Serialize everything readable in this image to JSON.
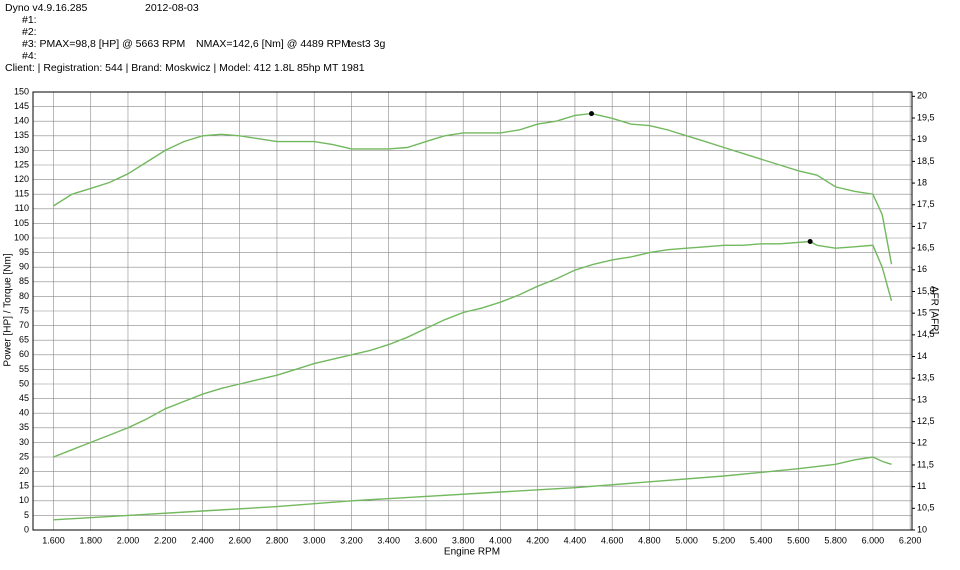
{
  "header": {
    "app": "Dyno v4.9.16.285",
    "date": "2012-08-03",
    "run1": "#1:",
    "run2": "#2:",
    "run3": "#3: PMAX=98,8 [HP] @ 5663 RPM",
    "run3_torque": "NMAX=142,6 [Nm] @ 4489 RPM",
    "run3_name": "test3 3g",
    "run4": "#4:",
    "client": "Client:  | Registration: 544 | Brand: Moskwicz | Model: 412 1.8L 85hp MT 1981"
  },
  "chart_data": {
    "type": "line",
    "x_label": "Engine RPM",
    "y_label": "Power [HP] / Torque [Nm]",
    "y2_label": "AFR [AFR]",
    "xlim": [
      1490,
      6210
    ],
    "ylim": [
      0,
      150
    ],
    "y2lim": [
      10,
      20.1
    ],
    "grid": true,
    "xticks": [
      {
        "value": 1600,
        "label": "1.600"
      },
      {
        "value": 1800,
        "label": "1.800"
      },
      {
        "value": 2000,
        "label": "2.000"
      },
      {
        "value": 2200,
        "label": "2.200"
      },
      {
        "value": 2400,
        "label": "2.400"
      },
      {
        "value": 2600,
        "label": "2.600"
      },
      {
        "value": 2800,
        "label": "2.800"
      },
      {
        "value": 3000,
        "label": "3.000"
      },
      {
        "value": 3200,
        "label": "3.200"
      },
      {
        "value": 3400,
        "label": "3.400"
      },
      {
        "value": 3600,
        "label": "3.600"
      },
      {
        "value": 3800,
        "label": "3.800"
      },
      {
        "value": 4000,
        "label": "4.000"
      },
      {
        "value": 4200,
        "label": "4.200"
      },
      {
        "value": 4400,
        "label": "4.400"
      },
      {
        "value": 4600,
        "label": "4.600"
      },
      {
        "value": 4800,
        "label": "4.800"
      },
      {
        "value": 5000,
        "label": "5.000"
      },
      {
        "value": 5200,
        "label": "5.200"
      },
      {
        "value": 5400,
        "label": "5.400"
      },
      {
        "value": 5600,
        "label": "5.600"
      },
      {
        "value": 5800,
        "label": "5.800"
      },
      {
        "value": 6000,
        "label": "6.000"
      },
      {
        "value": 6200,
        "label": "6.200"
      }
    ],
    "yticks": [
      0,
      5,
      10,
      15,
      20,
      25,
      30,
      35,
      40,
      45,
      50,
      55,
      60,
      65,
      70,
      75,
      80,
      85,
      90,
      95,
      100,
      105,
      110,
      115,
      120,
      125,
      130,
      135,
      140,
      145,
      150
    ],
    "y2ticks": [
      10,
      {
        "value": 10.5,
        "label": "10,5"
      },
      11,
      {
        "value": 11.5,
        "label": "11,5"
      },
      12,
      {
        "value": 12.5,
        "label": "12,5"
      },
      13,
      {
        "value": 13.5,
        "label": "13,5"
      },
      14,
      {
        "value": 14.5,
        "label": "14,5"
      },
      15,
      {
        "value": 15.5,
        "label": "15,5"
      },
      16,
      {
        "value": 16.5,
        "label": "16,5"
      },
      17,
      {
        "value": 17.5,
        "label": "17,5"
      },
      18,
      {
        "value": 18.5,
        "label": "18,5"
      },
      19,
      {
        "value": 19.5,
        "label": "19,5"
      },
      20
    ],
    "series": [
      {
        "color": "#72b85e",
        "x": [
          1600,
          1700,
          1800,
          1900,
          2000,
          2100,
          2200,
          2300,
          2400,
          2500,
          2600,
          2700,
          2800,
          3000,
          3100,
          3200,
          3300,
          3400,
          3500,
          3600,
          3700,
          3800,
          3900,
          4000,
          4100,
          4200,
          4300,
          4400,
          4489,
          4600,
          4700,
          4800,
          4900,
          5000,
          5100,
          5200,
          5300,
          5400,
          5500,
          5600,
          5700,
          5800,
          5900,
          6000,
          6050,
          6100
        ],
        "values": [
          111,
          115,
          117,
          119,
          122,
          126,
          130,
          133,
          135,
          135.5,
          135,
          134,
          133,
          133,
          132,
          130.5,
          130.5,
          130.5,
          131,
          133,
          135,
          136,
          136,
          136,
          137,
          139,
          140,
          142,
          142.6,
          141,
          139,
          138.5,
          137,
          135,
          133,
          131,
          129,
          127,
          125,
          123,
          121.5,
          117.5,
          116,
          115,
          108,
          91
        ]
      },
      {
        "color": "#72b85e",
        "x": [
          1600,
          1700,
          1800,
          1900,
          2000,
          2100,
          2200,
          2300,
          2400,
          2500,
          2600,
          2700,
          2800,
          2900,
          3000,
          3100,
          3200,
          3300,
          3400,
          3500,
          3600,
          3700,
          3800,
          3900,
          4000,
          4100,
          4200,
          4300,
          4400,
          4500,
          4600,
          4700,
          4800,
          4900,
          5000,
          5100,
          5200,
          5300,
          5400,
          5500,
          5663,
          5700,
          5800,
          5900,
          6000,
          6050,
          6100
        ],
        "values": [
          25,
          27.5,
          30,
          32.5,
          35,
          38,
          41.5,
          44,
          46.5,
          48.5,
          50,
          51.5,
          53,
          55,
          57,
          58.5,
          60,
          61.5,
          63.5,
          66,
          69,
          72,
          74.5,
          76,
          78,
          80.5,
          83.5,
          86,
          89,
          91,
          92.5,
          93.5,
          95,
          96,
          96.5,
          97,
          97.5,
          97.5,
          98,
          98,
          98.8,
          97.5,
          96.5,
          97,
          97.5,
          90,
          78.5
        ]
      },
      {
        "color": "#72b85e",
        "x": [
          1600,
          2000,
          2400,
          2800,
          3200,
          3600,
          4000,
          4400,
          4800,
          5200,
          5600,
          5800,
          5900,
          6000,
          6050,
          6100
        ],
        "values": [
          3.5,
          5,
          6.5,
          8,
          10,
          11.5,
          13,
          14.5,
          16.5,
          18.5,
          21,
          22.5,
          24,
          25,
          23.5,
          22.5
        ]
      }
    ],
    "markers": [
      {
        "x": 4489,
        "y": 142.6
      },
      {
        "x": 5663,
        "y": 98.8
      }
    ]
  }
}
